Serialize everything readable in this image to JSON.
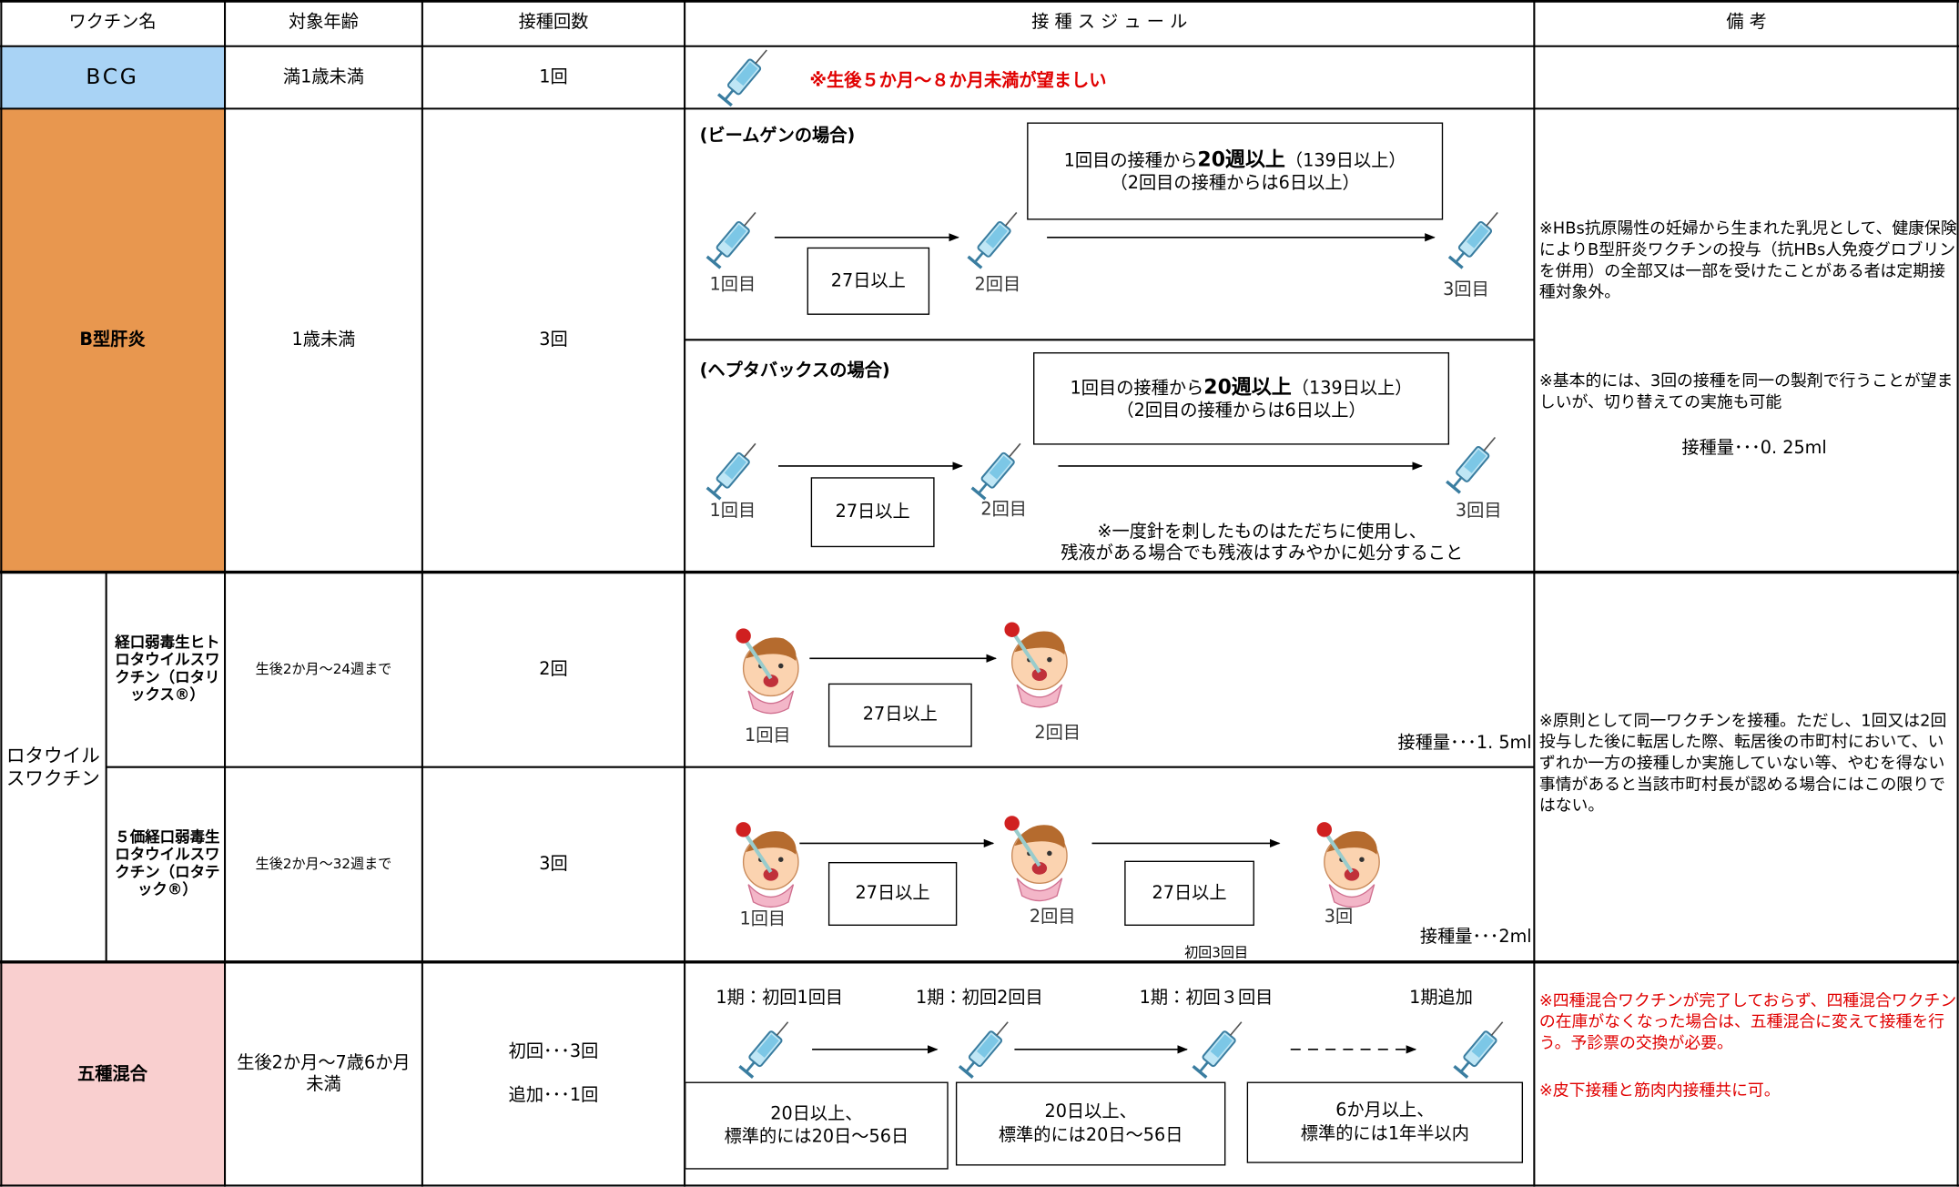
{
  "header": [
    "ワクチン名",
    "対象年齢",
    "接種回数",
    "接 種 ス ジ ュ ー ル",
    "備 考"
  ],
  "bcg": {
    "name": "BCG",
    "age": "満1歳未満",
    "count": "1回",
    "note": "※生後５か月～８か月未満が望ましい"
  },
  "hepb": {
    "name": "B型肝炎",
    "age": "1歳未満",
    "count": "3回",
    "plans": [
      {
        "title": "(ビームゲンの場合)",
        "interval_pre": "1回目の接種から",
        "interval_bold": "20週以上",
        "interval_post": "（139日以上）",
        "interval_sub": "（2回目の接種からは6日以上）",
        "dose_labels": [
          "1回目",
          "2回目",
          "3回目"
        ],
        "gap": "27日以上"
      },
      {
        "title": "(ヘプタバックスの場合)",
        "interval_pre": "1回目の接種から",
        "interval_bold": "20週以上",
        "interval_post": "（139日以上）",
        "interval_sub": "（2回目の接種からは6日以上）",
        "dose_labels": [
          "1回目",
          "2回目",
          "3回目"
        ],
        "gap": "27日以上",
        "note": [
          "※一度針を刺したものはただちに使用し、",
          "残液がある場合でも残液はすみやかに処分すること"
        ]
      }
    ],
    "remarks": [
      "※HBs抗原陽性の妊婦から生まれた乳児として、健康保険によりB型肝炎ワクチンの投与（抗HBs人免疫グロブリンを併用）の全部又は一部を受けたことがある者は定期接種対象外。",
      "※基本的には、3回の接種を同一の製剤で行うことが望ましいが、切り替えての実施も可能",
      "接種量･･･0. 25ml"
    ]
  },
  "rota": {
    "name": "ロタウイルスワクチン",
    "subs": [
      {
        "name": "経口弱毒生ヒトロタウイルスワクチン（ロタリックス®）",
        "age": "生後2か月～24週まで",
        "count": "2回",
        "dose_labels": [
          "1回目",
          "2回目"
        ],
        "gaps": [
          "27日以上"
        ],
        "dose": "接種量･･･1. 5ml"
      },
      {
        "name": "５価経口弱毒生ロタウイルスワクチン（ロタテック®）",
        "age": "生後2か月～32週まで",
        "count": "3回",
        "dose_labels": [
          "1回目",
          "2回目",
          "3回"
        ],
        "gaps": [
          "27日以上",
          "27日以上"
        ],
        "dose": "接種量･･･2ml",
        "extra": "初回3回目"
      }
    ],
    "remarks": "※原則として同一ワクチンを接種。ただし、1回又は2回投与した後に転居した際、転居後の市町村において、いずれか一方の接種しか実施していない等、やむを得ない事情があると当該市町村長が認める場合にはこの限りではない。"
  },
  "five": {
    "name": "五種混合",
    "age": "生後2か月～7歳6か月未満",
    "counts": [
      "初回･･･3回",
      "追加･･･1回"
    ],
    "stages": [
      "1期：初回1回目",
      "1期：初回2回目",
      "1期：初回３回目",
      "1期追加"
    ],
    "gaps": [
      [
        "20日以上、",
        "標準的には20日～56日"
      ],
      [
        "20日以上、",
        "標準的には20日～56日"
      ],
      [
        "6か月以上、",
        "標準的には1年半以内"
      ]
    ],
    "remarks": [
      "※四種混合ワクチンが完了しておらず、四種混合ワクチンの在庫がなくなった場合は、五種混合に変えて接種を行う。予診票の交換が必要。",
      "※皮下接種と筋肉内接種共に可。"
    ]
  }
}
